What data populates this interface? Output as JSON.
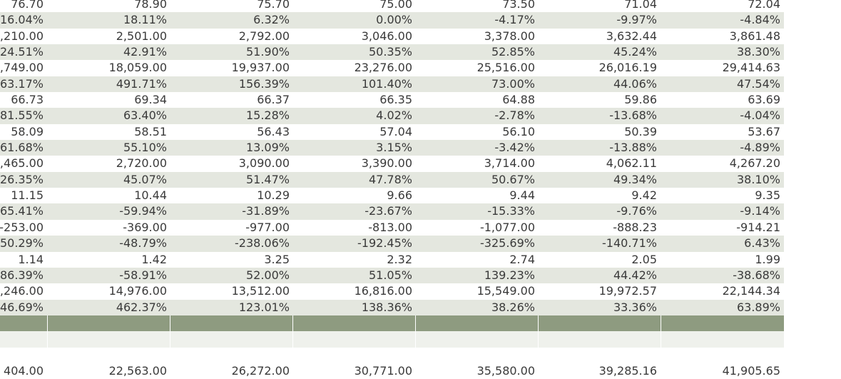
{
  "table": {
    "rows": [
      {
        "cells": [
          "76.70",
          "78.90",
          "75.70",
          "75.00",
          "73.50",
          "71.04",
          "72.04"
        ]
      },
      {
        "cells": [
          "16.04%",
          "18.11%",
          "6.32%",
          "0.00%",
          "-4.17%",
          "-9.97%",
          "-4.84%"
        ]
      },
      {
        "cells": [
          ",210.00",
          "2,501.00",
          "2,792.00",
          "3,046.00",
          "3,378.00",
          "3,632.44",
          "3,861.48"
        ]
      },
      {
        "cells": [
          "24.51%",
          "42.91%",
          "51.90%",
          "50.35%",
          "52.85%",
          "45.24%",
          "38.30%"
        ]
      },
      {
        "cells": [
          ",749.00",
          "18,059.00",
          "19,937.00",
          "23,276.00",
          "25,516.00",
          "26,016.19",
          "29,414.63"
        ]
      },
      {
        "cells": [
          "63.17%",
          "491.71%",
          "156.39%",
          "101.40%",
          "73.00%",
          "44.06%",
          "47.54%"
        ]
      },
      {
        "cells": [
          "66.73",
          "69.34",
          "66.37",
          "66.35",
          "64.88",
          "59.86",
          "63.69"
        ]
      },
      {
        "cells": [
          "81.55%",
          "63.40%",
          "15.28%",
          "4.02%",
          "-2.78%",
          "-13.68%",
          "-4.04%"
        ]
      },
      {
        "cells": [
          "58.09",
          "58.51",
          "56.43",
          "57.04",
          "56.10",
          "50.39",
          "53.67"
        ]
      },
      {
        "cells": [
          "61.68%",
          "55.10%",
          "13.09%",
          "3.15%",
          "-3.42%",
          "-13.88%",
          "-4.89%"
        ]
      },
      {
        "cells": [
          ",465.00",
          "2,720.00",
          "3,090.00",
          "3,390.00",
          "3,714.00",
          "4,062.11",
          "4,267.20"
        ]
      },
      {
        "cells": [
          "26.35%",
          "45.07%",
          "51.47%",
          "47.78%",
          "50.67%",
          "49.34%",
          "38.10%"
        ]
      },
      {
        "cells": [
          "11.15",
          "10.44",
          "10.29",
          "9.66",
          "9.44",
          "9.42",
          "9.35"
        ]
      },
      {
        "cells": [
          "65.41%",
          "-59.94%",
          "-31.89%",
          "-23.67%",
          "-15.33%",
          "-9.76%",
          "-9.14%"
        ]
      },
      {
        "cells": [
          "-253.00",
          "-369.00",
          "-977.00",
          "-813.00",
          "-1,077.00",
          "-888.23",
          "-914.21"
        ]
      },
      {
        "cells": [
          "50.29%",
          "-48.79%",
          "-238.06%",
          "-192.45%",
          "-325.69%",
          "-140.71%",
          "6.43%"
        ]
      },
      {
        "cells": [
          "1.14",
          "1.42",
          "3.25",
          "2.32",
          "2.74",
          "2.05",
          "1.99"
        ]
      },
      {
        "cells": [
          "86.39%",
          "-58.91%",
          "52.00%",
          "51.05%",
          "139.23%",
          "44.42%",
          "-38.68%"
        ]
      },
      {
        "cells": [
          ",246.00",
          "14,976.00",
          "13,512.00",
          "16,816.00",
          "15,549.00",
          "19,972.57",
          "22,144.34"
        ]
      },
      {
        "cells": [
          "46.69%",
          "462.37%",
          "123.01%",
          "138.36%",
          "38.26%",
          "33.36%",
          "63.89%"
        ]
      }
    ],
    "last_row": {
      "cells": [
        "404.00",
        "22,563.00",
        "26,272.00",
        "30,771.00",
        "35,580.00",
        "39,285.16",
        "41,905.65"
      ]
    }
  }
}
